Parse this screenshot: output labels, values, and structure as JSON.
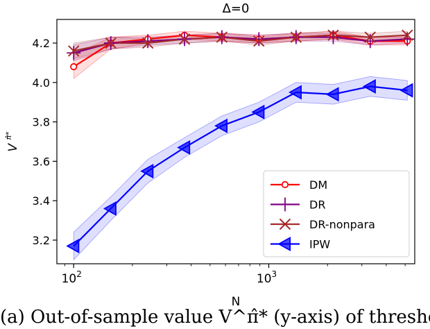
{
  "chart_data": {
    "type": "line",
    "title": "Δ=0",
    "xlabel": "N",
    "ylabel": "V^{π̂*}",
    "xscale": "log",
    "xlim": [
      82,
      5600
    ],
    "ylim": [
      3.08,
      4.32
    ],
    "yticks": [
      3.2,
      3.4,
      3.6,
      3.8,
      4.0,
      4.2
    ],
    "ytick_labels": [
      "3.2",
      "3.4",
      "3.6",
      "3.8",
      "4.0",
      "4.2"
    ],
    "xtick_labels": [
      {
        "value": 100,
        "base": "10",
        "exp": "2"
      },
      {
        "value": 1000,
        "base": "10",
        "exp": "3"
      }
    ],
    "x": [
      100,
      155,
      240,
      370,
      575,
      890,
      1380,
      2140,
      3310,
      5130
    ],
    "series": [
      {
        "name": "DM",
        "color": "#ff0000",
        "marker": "circle",
        "values": [
          4.08,
          4.2,
          4.22,
          4.24,
          4.23,
          4.22,
          4.23,
          4.24,
          4.21,
          4.21
        ],
        "band": [
          0.06,
          0.03,
          0.02,
          0.02,
          0.02,
          0.02,
          0.02,
          0.02,
          0.02,
          0.02
        ]
      },
      {
        "name": "DR",
        "color": "#800080",
        "marker": "plus",
        "values": [
          4.15,
          4.2,
          4.21,
          4.22,
          4.23,
          4.22,
          4.23,
          4.23,
          4.21,
          4.22
        ],
        "band": [
          0.04,
          0.03,
          0.02,
          0.02,
          0.02,
          0.02,
          0.02,
          0.02,
          0.02,
          0.02
        ]
      },
      {
        "name": "DR-nonpara",
        "color": "#a52a2a",
        "marker": "x",
        "values": [
          4.16,
          4.2,
          4.2,
          4.22,
          4.23,
          4.21,
          4.23,
          4.24,
          4.23,
          4.24
        ],
        "band": [
          0.04,
          0.03,
          0.02,
          0.02,
          0.02,
          0.02,
          0.02,
          0.02,
          0.02,
          0.02
        ]
      },
      {
        "name": "IPW",
        "color": "#0000ff",
        "marker": "triangle-left",
        "values": [
          3.17,
          3.36,
          3.55,
          3.67,
          3.78,
          3.85,
          3.95,
          3.94,
          3.98,
          3.96
        ],
        "band": [
          0.07,
          0.06,
          0.06,
          0.05,
          0.05,
          0.05,
          0.05,
          0.05,
          0.05,
          0.05
        ]
      }
    ],
    "legend_position": "lower-right"
  },
  "caption": "(a) Out-of-sample value V^π̂* (y-axis) of thresho"
}
